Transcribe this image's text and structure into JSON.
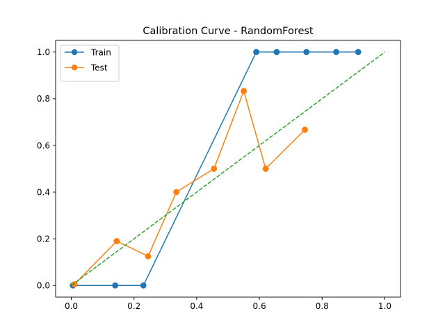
{
  "chart_data": {
    "type": "line",
    "title": "Calibration Curve - RandomForest",
    "xlabel": "",
    "ylabel": "",
    "xlim": [
      -0.05,
      1.05
    ],
    "ylim": [
      -0.05,
      1.05
    ],
    "x_ticks": [
      0.0,
      0.2,
      0.4,
      0.6,
      0.8,
      1.0
    ],
    "y_ticks": [
      0.0,
      0.2,
      0.4,
      0.6,
      0.8,
      1.0
    ],
    "x_tick_labels": [
      "0.0",
      "0.2",
      "0.4",
      "0.6",
      "0.8",
      "1.0"
    ],
    "y_tick_labels": [
      "0.0",
      "0.2",
      "0.4",
      "0.6",
      "0.8",
      "1.0"
    ],
    "grid": false,
    "legend_position": "top-left",
    "series": [
      {
        "name": "Train",
        "color": "#1f77b4",
        "marker": "circle",
        "line_style": "solid",
        "x": [
          0.005,
          0.14,
          0.23,
          0.59,
          0.655,
          0.75,
          0.845,
          0.915
        ],
        "y": [
          0.0,
          0.0,
          0.0,
          1.0,
          1.0,
          1.0,
          1.0,
          1.0
        ]
      },
      {
        "name": "Test",
        "color": "#ff7f0e",
        "marker": "circle",
        "line_style": "solid",
        "x": [
          0.01,
          0.145,
          0.245,
          0.335,
          0.455,
          0.55,
          0.62,
          0.745
        ],
        "y": [
          0.005,
          0.19,
          0.125,
          0.4,
          0.5,
          0.833,
          0.5,
          0.667
        ]
      },
      {
        "name": "",
        "color": "#2ca02c",
        "marker": "none",
        "line_style": "dashed",
        "x": [
          0.0,
          1.0
        ],
        "y": [
          0.0,
          1.0
        ]
      }
    ]
  }
}
